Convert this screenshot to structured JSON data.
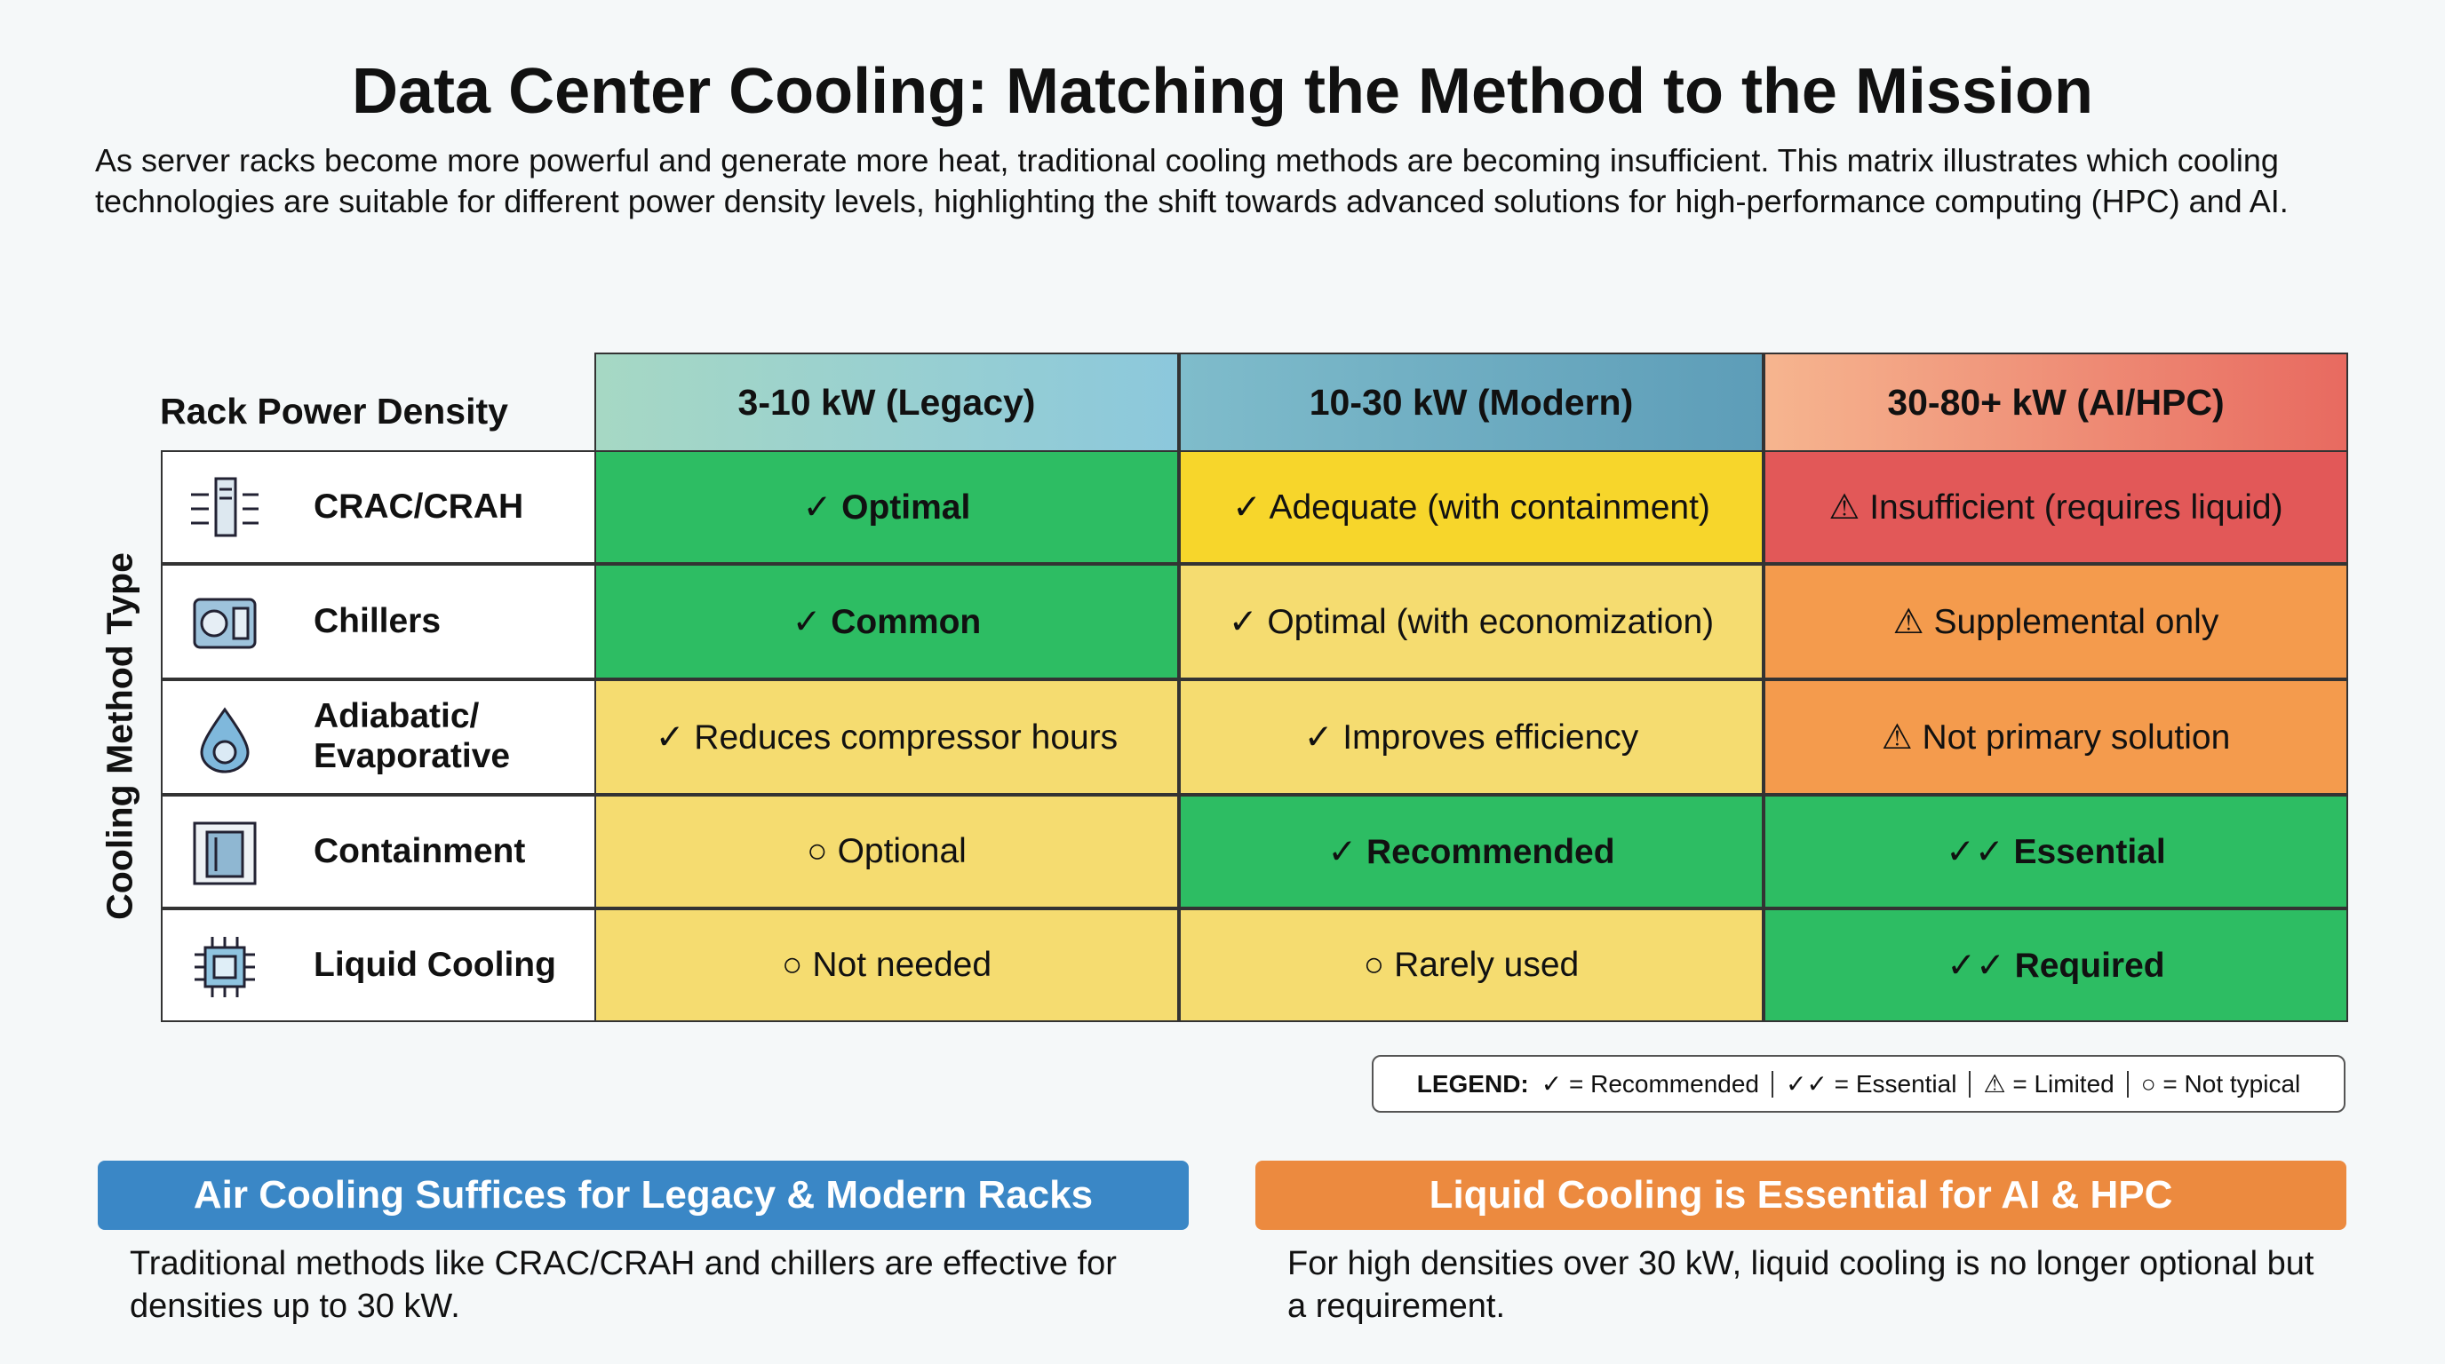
{
  "header": {
    "title": "Data Center Cooling: Matching the Method to the Mission",
    "subtitle": [
      "As server racks become more powerful and generate more heat, traditional cooling methods are becoming insufficient. This matrix illustrates which cooling",
      "technologies are suitable for different power density levels, highlighting the shift towards advanced solutions for high-performance computing (HPC) and AI."
    ]
  },
  "table": {
    "corner": "Rack Power Density",
    "row_axis": "Cooling Method Type",
    "columns": [
      "3-10 kW (Legacy)",
      "10-30 kW (Modern)",
      "30-80+ kW (AI/HPC)"
    ],
    "rows": [
      {
        "label": "CRAC/CRAH",
        "cells": [
          {
            "text": "✓ Optimal",
            "color": "#2dbd63",
            "bold": true
          },
          {
            "text": "✓ Adequate (with containment)",
            "color": "#f7d62b",
            "bold": false
          },
          {
            "text": "⚠ Insufficient (requires liquid)",
            "color": "#e25858",
            "bold": false
          }
        ]
      },
      {
        "label": "Chillers",
        "cells": [
          {
            "text": "✓ Common",
            "color": "#2dbd63",
            "bold": true
          },
          {
            "text": "✓ Optimal (with economization)",
            "color": "#f5dc70",
            "bold": false
          },
          {
            "text": "⚠ Supplemental only",
            "color": "#f49b4d",
            "bold": false
          }
        ]
      },
      {
        "label": "Adiabatic/\nEvaporative",
        "cells": [
          {
            "text": "✓ Reduces compressor hours",
            "color": "#f5dc70",
            "bold": false
          },
          {
            "text": "✓ Improves efficiency",
            "color": "#f5dc70",
            "bold": false
          },
          {
            "text": "⚠ Not primary solution",
            "color": "#f49b4d",
            "bold": false
          }
        ]
      },
      {
        "label": "Containment",
        "cells": [
          {
            "text": "○ Optional",
            "color": "#f5dc70",
            "bold": false
          },
          {
            "text": "✓ Recommended",
            "color": "#2dbd63",
            "bold": true
          },
          {
            "text": "✓✓ Essential",
            "color": "#2dbd63",
            "bold": true
          }
        ]
      },
      {
        "label": "Liquid Cooling",
        "cells": [
          {
            "text": "○ Not needed",
            "color": "#f5dc70",
            "bold": false
          },
          {
            "text": "○ Rarely used",
            "color": "#f5dc70",
            "bold": false
          },
          {
            "text": "✓✓ Required",
            "color": "#2dbd63",
            "bold": true
          }
        ]
      }
    ]
  },
  "legend": {
    "title": "LEGEND:",
    "items": [
      "✓ = Recommended",
      "✓✓ = Essential",
      "⚠ = Limited",
      "○ = Not typical"
    ]
  },
  "callouts": [
    {
      "title": "Air Cooling Suffices for Legacy & Modern Racks",
      "color": "#3a87c6",
      "text": "Traditional methods like CRAC/CRAH and chillers are effective for densities up to 30 kW."
    },
    {
      "title": "Liquid Cooling is Essential for AI & HPC",
      "color": "#ec8a3f",
      "text": "For high densities over 30 kW, liquid cooling is no longer optional but a requirement."
    }
  ]
}
